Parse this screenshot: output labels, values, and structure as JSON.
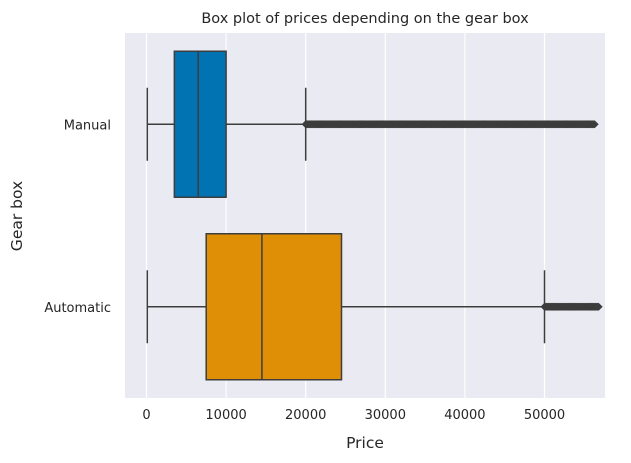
{
  "chart_data": {
    "type": "box",
    "title": "Box plot of prices depending on the gear box",
    "xlabel": "Price",
    "ylabel": "Gear box",
    "xlim": [
      -2700,
      57600
    ],
    "xticks": [
      0,
      10000,
      20000,
      30000,
      40000,
      50000
    ],
    "xtick_labels": [
      "0",
      "10000",
      "20000",
      "30000",
      "40000",
      "50000"
    ],
    "grid": true,
    "orientation": "horizontal",
    "categories": [
      "Manual",
      "Automatic"
    ],
    "series": [
      {
        "category": "Manual",
        "color": "#0173b2",
        "whisker_low": 100,
        "q1": 3500,
        "median": 6500,
        "q3": 10000,
        "whisker_high": 20000,
        "outliers_from": 20000,
        "outliers_to": 56300
      },
      {
        "category": "Automatic",
        "color": "#de8f05",
        "whisker_low": 100,
        "q1": 7500,
        "median": 14500,
        "q3": 24500,
        "whisker_high": 50000,
        "outliers_from": 50000,
        "outliers_to": 56800
      }
    ],
    "colors": {
      "axes_background": "#eaeaf2",
      "grid": "#ffffff",
      "line": "#3d3d3d",
      "text": "#262626"
    }
  }
}
